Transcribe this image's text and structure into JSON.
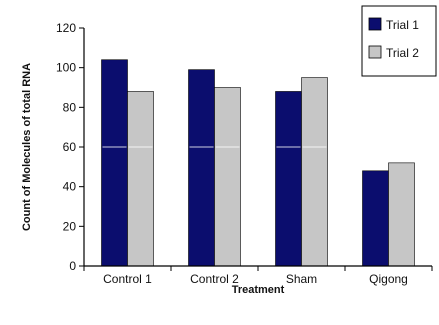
{
  "chart_data": {
    "type": "bar",
    "categories": [
      "Control 1",
      "Control 2",
      "Sham",
      "Qigong"
    ],
    "series": [
      {
        "name": "Trial 1",
        "values": [
          104,
          99,
          88,
          48
        ],
        "color": "#0b0d6e"
      },
      {
        "name": "Trial 2",
        "values": [
          88,
          90,
          95,
          52
        ],
        "color": "#c6c6c6"
      }
    ],
    "xlabel": "Treatment",
    "ylabel": "Count of Molecules of total RNA",
    "ylim": [
      0,
      120
    ],
    "yticks": [
      0,
      20,
      40,
      60,
      80,
      100,
      120
    ],
    "grid": false,
    "legend_position": "top-right"
  }
}
